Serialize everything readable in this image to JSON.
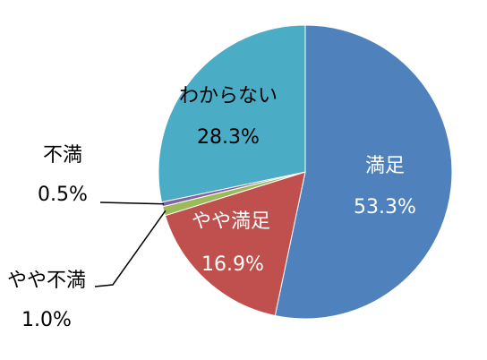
{
  "chart_data": {
    "type": "pie",
    "title": "",
    "slices": [
      {
        "label": "満足",
        "value": 53.3,
        "value_text": "53.3%",
        "color": "#4f81bd",
        "label_color": "#ffffff"
      },
      {
        "label": "やや満足",
        "value": 16.9,
        "value_text": "16.9%",
        "color": "#c0504d",
        "label_color": "#ffffff"
      },
      {
        "label": "やや不満",
        "value": 1.0,
        "value_text": "1.0%",
        "color": "#9bbb59",
        "label_color": "#000000"
      },
      {
        "label": "不満",
        "value": 0.5,
        "value_text": "0.5%",
        "color": "#8064a2",
        "label_color": "#000000"
      },
      {
        "label": "わからない",
        "value": 28.3,
        "value_text": "28.3%",
        "color": "#4bacc6",
        "label_color": "#000000"
      }
    ],
    "start": "12 o'clock",
    "direction": "clockwise",
    "legend": "none"
  }
}
